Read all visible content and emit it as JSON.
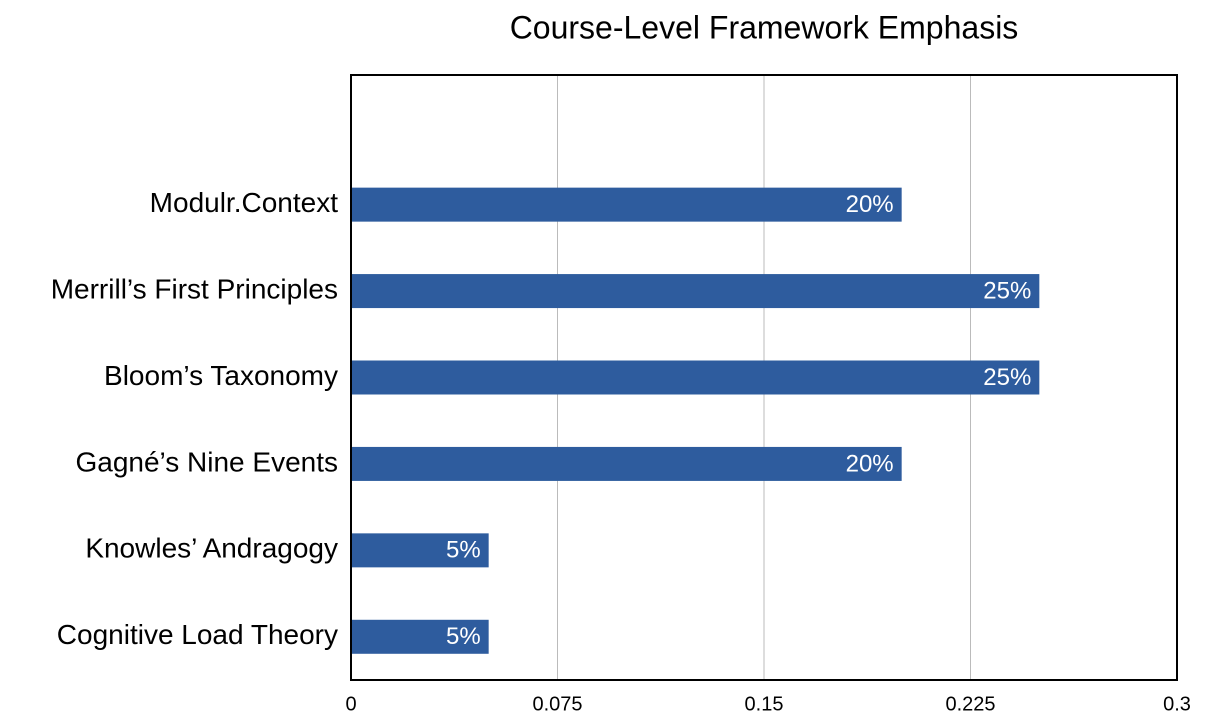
{
  "chart_data": {
    "type": "barh",
    "title": "Course-Level Framework Emphasis",
    "categories": [
      null,
      "Modulr.Context",
      "Merrill’s First Principles",
      "Bloom’s Taxonomy",
      "Gagné’s Nine Events",
      "Knowles’ Andragogy",
      "Cognitive Load Theory"
    ],
    "values": [
      null,
      0.2,
      0.25,
      0.25,
      0.2,
      0.05,
      0.05
    ],
    "value_labels": [
      null,
      "20%",
      "25%",
      "25%",
      "20%",
      "5%",
      "5%"
    ],
    "color": "#2e5c9e",
    "xlim": [
      0,
      0.3
    ],
    "xticks": [
      0,
      0.075,
      0.15,
      0.225,
      0.3
    ],
    "grid": true
  }
}
